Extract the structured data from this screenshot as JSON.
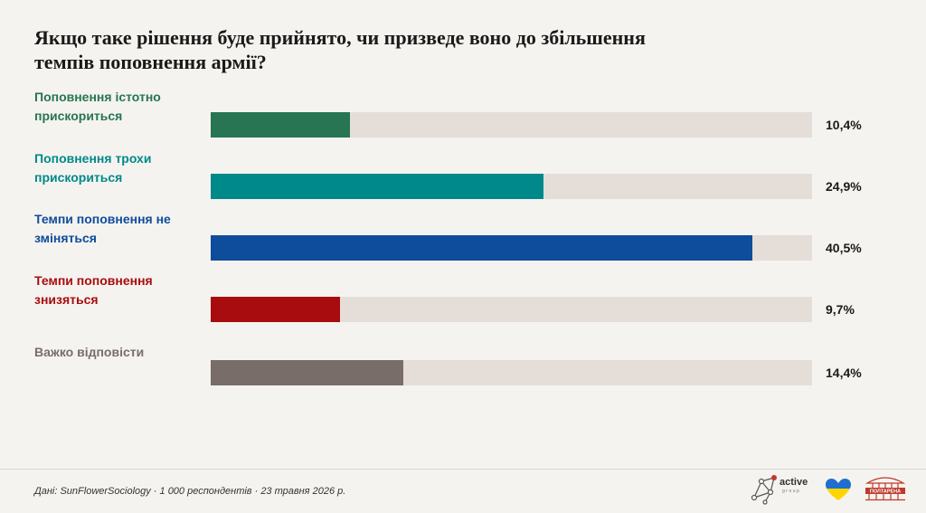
{
  "title": "Якщо таке рішення буде прийнято, чи призведе воно до збільшення темпів поповнення армії?",
  "chart_data": {
    "type": "bar",
    "orientation": "horizontal",
    "xlim": [
      0,
      45
    ],
    "categories": [
      "Поповнення істотно прискориться",
      "Поповнення трохи прискориться",
      "Темпи поповнення не зміняться",
      "Темпи поповнення знизяться",
      "Важко відповісти"
    ],
    "values": [
      10.4,
      24.9,
      40.5,
      9.7,
      14.4
    ],
    "value_labels": [
      "10,4%",
      "24,9%",
      "40,5%",
      "9,7%",
      "14,4%"
    ],
    "colors": [
      "#277552",
      "#00898a",
      "#0e4c9c",
      "#a80c0e",
      "#786d69"
    ],
    "track_color": "#e5ddd8"
  },
  "footer": {
    "source": "Дані: SunFlowerSociology · 1 000 респондентів · 23 травня 2026 р."
  },
  "logos": {
    "active_text": "active",
    "active_sub": "group",
    "poltarena_text": "ПОЛТАРЕНА"
  }
}
